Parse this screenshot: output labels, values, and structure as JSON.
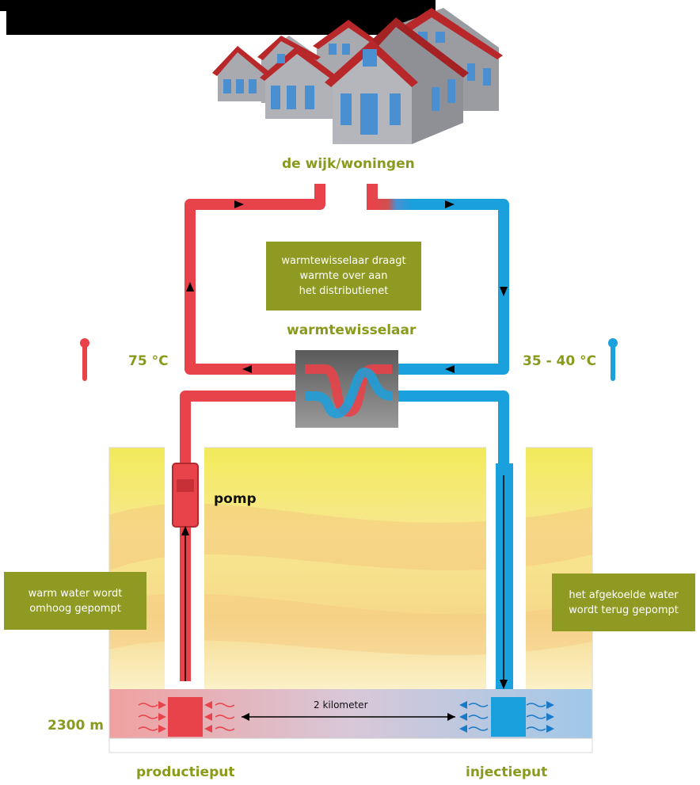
{
  "labels": {
    "neighborhood": "de wijk/woningen",
    "heat_exchanger": "warmtewisselaar",
    "temp_hot": "75 °C",
    "temp_cold": "35 - 40 °C",
    "pump": "pomp",
    "depth": "2300 m",
    "distance": "2 kilometer",
    "production_well": "productieput",
    "injection_well": "injectieput"
  },
  "boxes": {
    "exchanger_note": [
      "warmtewisselaar draagt",
      "warmte over aan",
      "het distributienet"
    ],
    "warm_water_note": [
      "warm water wordt",
      "omhoog gepompt"
    ],
    "cooled_water_note": [
      "het afgekoelde water",
      "wordt terug gepompt"
    ]
  },
  "colors": {
    "hot_pipe": "#e8424a",
    "cold_pipe": "#1aa0dc",
    "label_green": "#8a9a1a",
    "box_green": "#8f9a23",
    "exchanger_gray": "#6e6e6e",
    "roof_red": "#b8282a",
    "wall_gray": "#a8aab0",
    "window_blue": "#4a90d0"
  },
  "icons": [
    "houses-illustration",
    "thermometer-hot-icon",
    "thermometer-cold-icon",
    "flow-arrow-icon"
  ]
}
